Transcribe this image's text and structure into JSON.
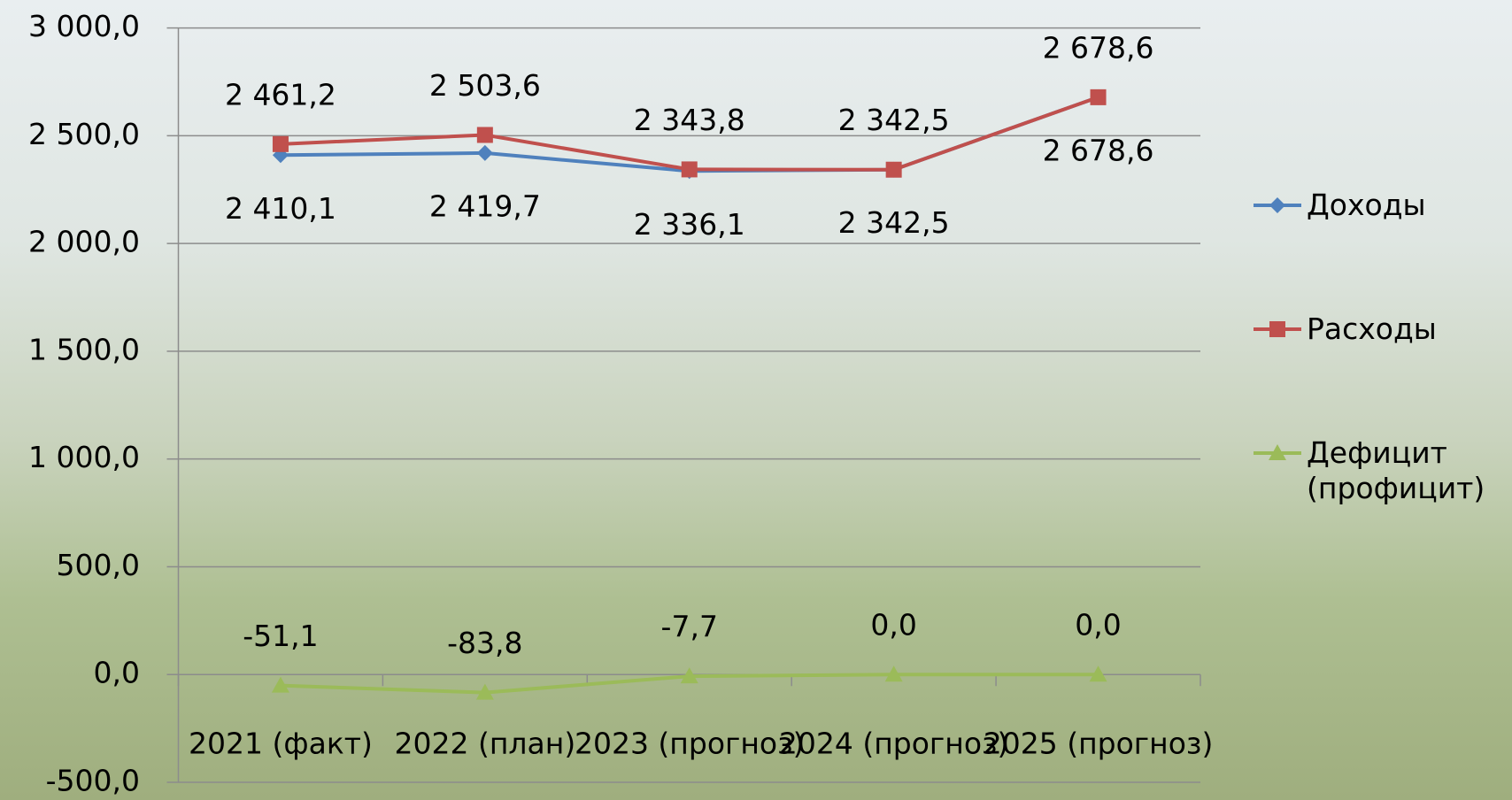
{
  "chart_data": {
    "type": "line",
    "categories": [
      "2021 (факт)",
      "2022 (план)",
      "2023 (прогноз)",
      "2024 (прогноз)",
      "2025 (прогноз)"
    ],
    "series": [
      {
        "name": "Доходы",
        "color": "#4f81bd",
        "marker": "diamond",
        "values": [
          2410.1,
          2419.7,
          2336.1,
          2342.5,
          2678.6
        ],
        "value_labels": [
          "2 410,1",
          "2 419,7",
          "2 336,1",
          "2 342,5",
          "2 678,6"
        ]
      },
      {
        "name": "Расходы",
        "color": "#c0504d",
        "marker": "square",
        "values": [
          2461.2,
          2503.6,
          2343.8,
          2342.5,
          2678.6
        ],
        "value_labels": [
          "2 461,2",
          "2 503,6",
          "2 343,8",
          "2 342,5",
          "2 678,6"
        ]
      },
      {
        "name": "Дефицит (профицит)",
        "color": "#9bbb59",
        "marker": "triangle",
        "values": [
          -51.1,
          -83.8,
          -7.7,
          0,
          0
        ],
        "value_labels": [
          "-51,1",
          "-83,8",
          "-7,7",
          "0,0",
          "0,0"
        ]
      }
    ],
    "ylim": [
      -500,
      3000
    ],
    "yticks": [
      {
        "value": -500,
        "label": "-500,0"
      },
      {
        "value": 0,
        "label": "0,0"
      },
      {
        "value": 500,
        "label": "500,0"
      },
      {
        "value": 1000,
        "label": "1 000,0"
      },
      {
        "value": 1500,
        "label": "1 500,0"
      },
      {
        "value": 2000,
        "label": "2 000,0"
      },
      {
        "value": 2500,
        "label": "2 500,0"
      },
      {
        "value": 3000,
        "label": "3 000,0"
      }
    ],
    "grid": true,
    "legend": "right"
  }
}
